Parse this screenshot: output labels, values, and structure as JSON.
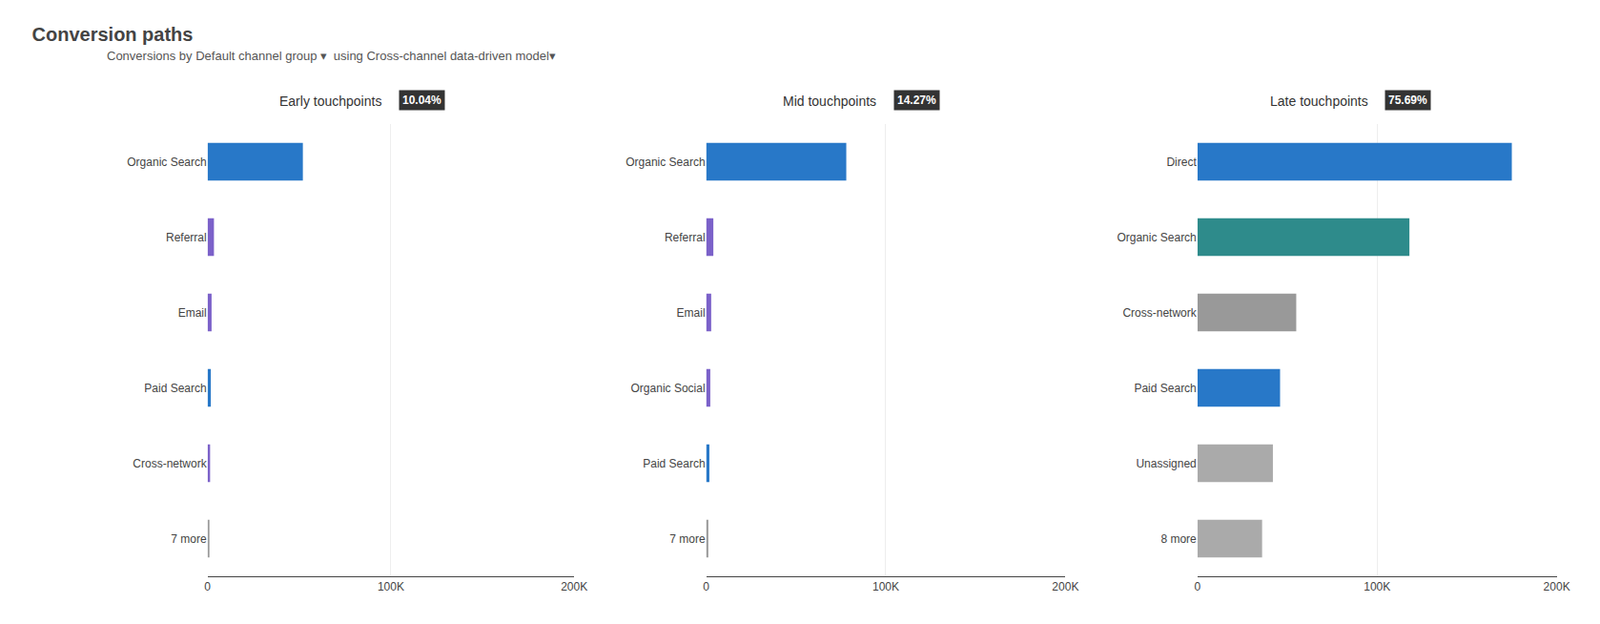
{
  "title": "Conversion paths",
  "subtitle": "Conversions by Default channel group ▾  using Cross-channel data-driven model▾",
  "chart_data": [
    {
      "type": "bar",
      "orientation": "horizontal",
      "title": "Early touchpoints",
      "subtitle": "10.04%",
      "categories": [
        "Organic Search",
        "Referral",
        "Email",
        "Paid Search",
        "Cross-network",
        "7 more"
      ],
      "values": [
        52000,
        3500,
        2200,
        1800,
        1400,
        900
      ],
      "colors": [
        "#2878c8",
        "#7b61c9",
        "#7b61c9",
        "#2878c8",
        "#7b61c9",
        "#999999"
      ],
      "xlim": [
        0,
        200000
      ],
      "xticks": [
        0,
        {
          "value": 100000,
          "label": "100K"
        },
        {
          "value": 200000,
          "label": "200K"
        }
      ],
      "grid": true
    },
    {
      "type": "bar",
      "orientation": "horizontal",
      "title": "Mid touchpoints",
      "subtitle": "14.27%",
      "categories": [
        "Organic Search",
        "Referral",
        "Email",
        "Organic Social",
        "Paid Search",
        "7 more"
      ],
      "values": [
        78000,
        4000,
        2800,
        2300,
        1800,
        1200
      ],
      "colors": [
        "#2878c8",
        "#7b61c9",
        "#7b61c9",
        "#7b61c9",
        "#2878c8",
        "#999999"
      ],
      "xlim": [
        0,
        200000
      ],
      "xticks": [
        0,
        {
          "value": 100000,
          "label": "100K"
        },
        {
          "value": 200000,
          "label": "200K"
        }
      ],
      "grid": true
    },
    {
      "type": "bar",
      "orientation": "horizontal",
      "title": "Late touchpoints",
      "subtitle": "75.69%",
      "categories": [
        "Direct",
        "Organic Search",
        "Cross-network",
        "Paid Search",
        "Unassigned",
        "8 more"
      ],
      "values": [
        175000,
        118000,
        55000,
        46000,
        42000,
        36000
      ],
      "colors": [
        "#2878c8",
        "#2e8b8b",
        "#999999",
        "#2878c8",
        "#aaaaaa",
        "#aaaaaa"
      ],
      "xlim": [
        0,
        200000
      ],
      "xticks": [
        0,
        {
          "value": 100000,
          "label": "100K"
        },
        {
          "value": 200000,
          "label": "200K"
        }
      ],
      "grid": true
    }
  ]
}
